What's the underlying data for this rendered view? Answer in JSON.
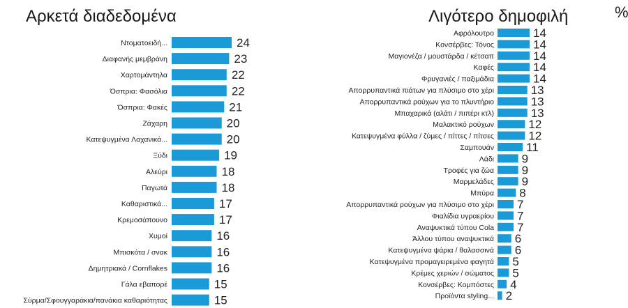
{
  "unit_label": "%",
  "chart_data": [
    {
      "type": "bar",
      "orientation": "horizontal",
      "title": "Αρκετά διαδεδομένα",
      "bar_color": "#1a9ad6",
      "xlim": [
        0,
        24
      ],
      "categories": [
        "Ντοματοειδή...",
        "Διαφανής μεμβράνη",
        "Χαρτομάντηλα",
        "Όσπρια: Φασόλια",
        "Όσπρια: Φακές",
        "Ζάχαρη",
        "Κατεψυγμένα Λαχανικά...",
        "Ξύδι",
        "Αλεύρι",
        "Παγωτά",
        "Καθαριστικά...",
        "Κρεμοσάπουνο",
        "Χυμοί",
        "Μπισκότα / σνακ",
        "Δημητριακά / Cornflakes",
        "Γάλα εβαπορέ",
        "Σύρμα/Σφουγγαράκια/πανάκια καθαριότητας"
      ],
      "values": [
        24,
        23,
        22,
        22,
        21,
        20,
        20,
        19,
        18,
        18,
        17,
        17,
        16,
        16,
        16,
        15,
        15
      ]
    },
    {
      "type": "bar",
      "orientation": "horizontal",
      "title": "Λιγότερο δημοφιλή",
      "bar_color": "#1a9ad6",
      "xlim": [
        0,
        14
      ],
      "categories": [
        "Αφρόλουτρο",
        "Κονσέρβες: Τόνος",
        "Μαγιονέζα / μουστάρδα / κέτσαπ",
        "Καφές",
        "Φρυγανιές / παξιμάδια",
        "Απορρυπαντικά πιάτων για πλύσιμο στο χέρι",
        "Απορρυπαντικά ρούχων για το πλυντήριο",
        "Μπαχαρικά (αλάτι / πιπέρι κτλ)",
        "Μαλακτικό ρούχων",
        "Κατεψυγμένα φύλλα / ζύμες / πίττες / πίτσες",
        "Σαμπουάν",
        "Λάδι",
        "Τροφές για ζώα",
        "Μαρμελάδες",
        "Μπύρα",
        "Απορρυπαντικά ρούχων για πλύσιμο στο χέρι",
        "Φιαλίδια υγραερίου",
        "Αναψυκτικά τύπου Cola",
        "Άλλου τύπου αναψυκτικά",
        "Κατεψυγμένα ψάρια / θαλασσινά",
        "Κατεψυγμένα προμαγειρεμένα φαγητά",
        "Κρέμες χεριών / σώματος",
        "Κονσέρβες: Κομπόστες",
        "Προϊόντα styling..."
      ],
      "values": [
        14,
        14,
        14,
        14,
        14,
        13,
        13,
        13,
        12,
        12,
        11,
        9,
        9,
        9,
        8,
        7,
        7,
        7,
        6,
        6,
        5,
        5,
        4,
        2
      ]
    }
  ]
}
